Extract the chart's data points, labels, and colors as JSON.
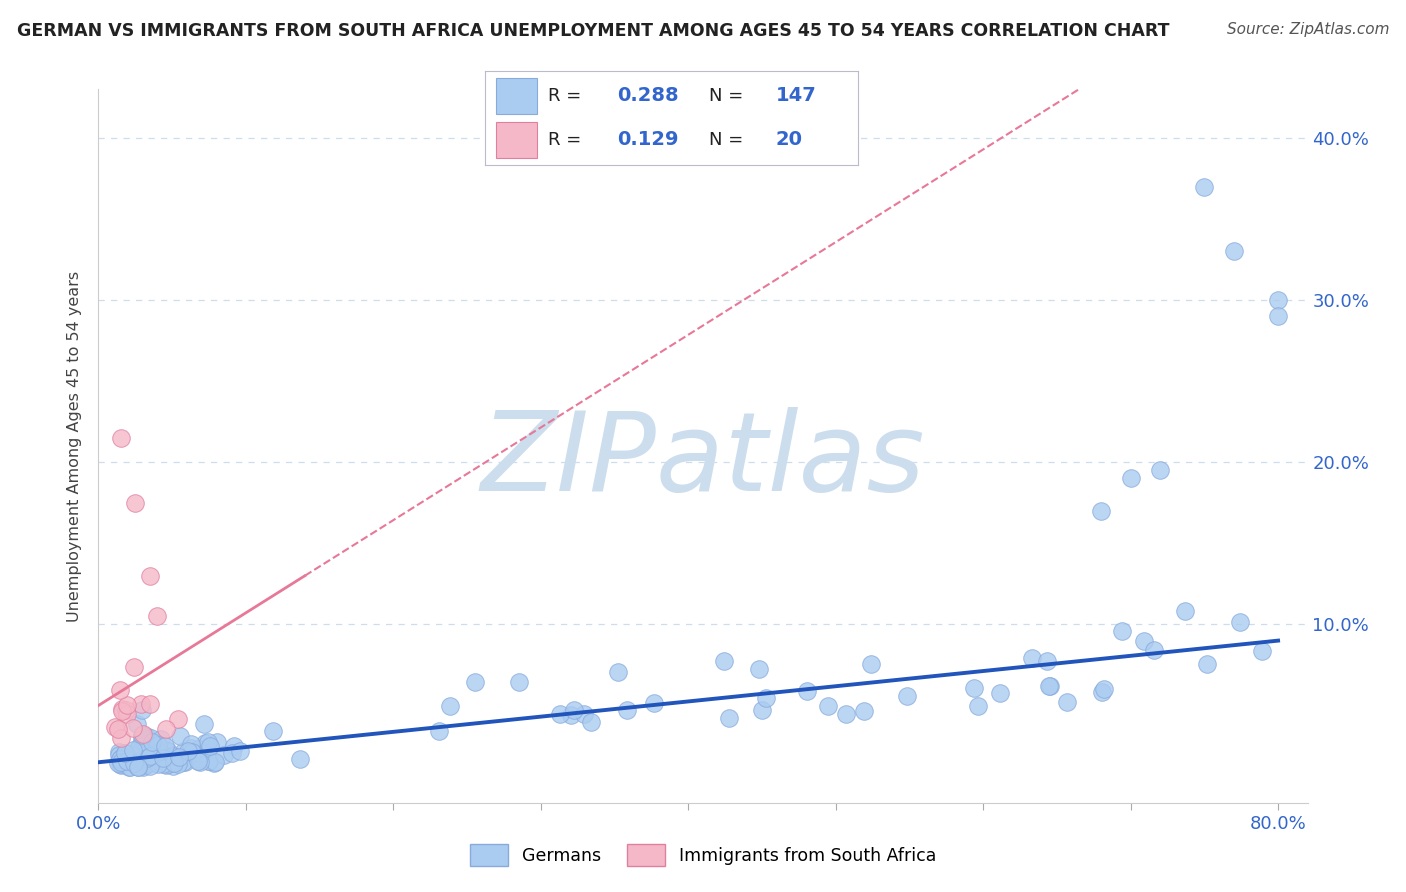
{
  "title": "GERMAN VS IMMIGRANTS FROM SOUTH AFRICA UNEMPLOYMENT AMONG AGES 45 TO 54 YEARS CORRELATION CHART",
  "source": "Source: ZipAtlas.com",
  "ylabel": "Unemployment Among Ages 45 to 54 years",
  "xlim": [
    0.0,
    0.82
  ],
  "ylim": [
    -0.01,
    0.43
  ],
  "german_R": 0.288,
  "german_N": 147,
  "sa_R": 0.129,
  "sa_N": 20,
  "german_color": "#aaccf0",
  "german_edge": "#88aadd",
  "sa_color": "#f5b8c8",
  "sa_edge": "#e080a0",
  "trend_german_color": "#2255bb",
  "trend_sa_color": "#e87898",
  "watermark": "ZIPatlas",
  "watermark_color": "#ccdded",
  "legend_val_color": "#3366cc",
  "legend_label_color": "#222222",
  "background_color": "#ffffff",
  "grid_color": "#ccddee",
  "title_color": "#222222",
  "figsize": [
    14.06,
    8.92
  ],
  "dpi": 100
}
